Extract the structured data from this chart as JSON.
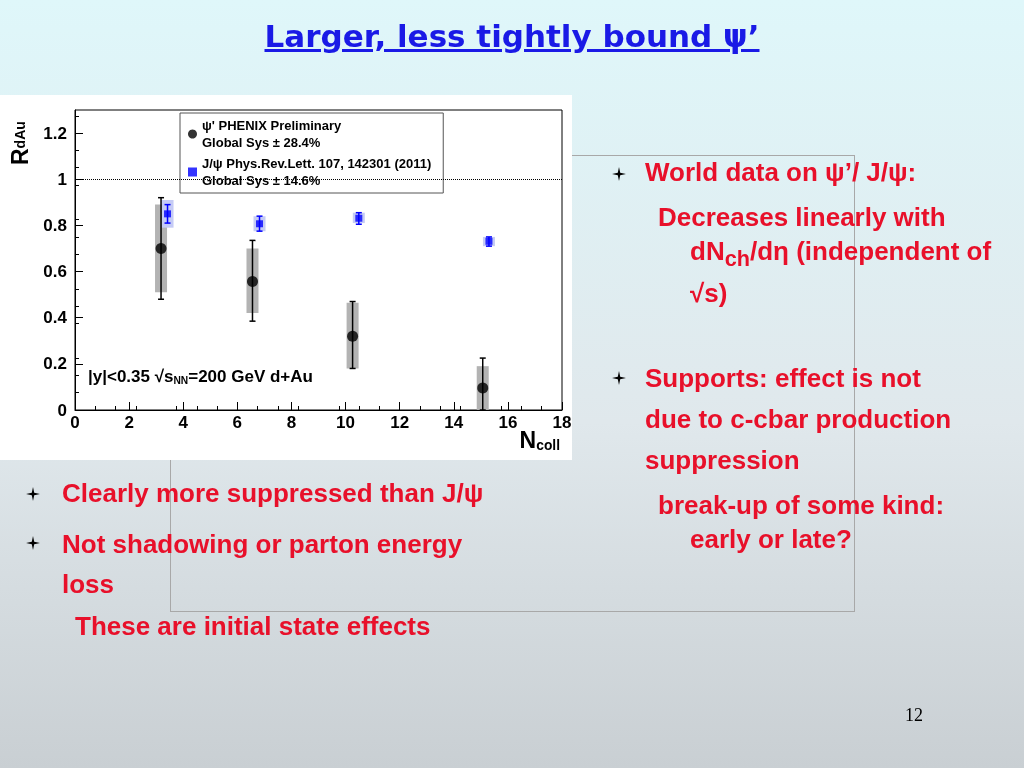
{
  "chart_data": {
    "type": "scatter",
    "title": "Larger, less tightly bound ψ’",
    "xlabel": "N$_{coll}$",
    "ylabel": "R$_{dAu}$",
    "xlim": [
      0,
      18
    ],
    "xticks": [
      0,
      2,
      4,
      6,
      8,
      10,
      12,
      14,
      16,
      18
    ],
    "ylim": [
      0,
      1.3
    ],
    "yticks": [
      0,
      0.2,
      0.4,
      0.6,
      0.8,
      1,
      1.2
    ],
    "grid": false,
    "legend": "top",
    "ref_lines": [
      {
        "axis": "y",
        "value": 1,
        "line_style": "dotted",
        "color": "#000000"
      }
    ],
    "series": [
      {
        "type": "bar",
        "color": "#b3b3b3",
        "x": [
          3.18,
          6.56,
          10.26,
          15.07
        ],
        "base": [
          0.51,
          0.42,
          0.18,
          0
        ],
        "values": [
          0.38,
          0.28,
          0.285,
          0.19
        ]
      },
      {
        "type": "bar",
        "color": "#c5cbf5",
        "x": [
          3.42,
          6.82,
          10.49,
          15.3
        ],
        "base": [
          0.79,
          0.775,
          0.81,
          0.71
        ],
        "values": [
          0.12,
          0.065,
          0.045,
          0.04
        ]
      },
      {
        "name": "ψ' PHENIX Preliminary\nGlobal Sys ± 28.4%",
        "color": "#000000",
        "marker": "circle",
        "x": [
          3.18,
          6.56,
          10.26,
          15.07
        ],
        "values": [
          0.7,
          0.557,
          0.32,
          0.095
        ],
        "errors": [
          [
            0.48,
            0.92
          ],
          [
            0.385,
            0.735
          ],
          [
            0.18,
            0.47
          ],
          [
            0,
            0.225
          ]
        ]
      },
      {
        "name": "J/ψ Phys.Rev.Lett. 107, 142301 (2011)\nGlobal Sys ± 14.6%",
        "color": "#0000ff",
        "marker": "square",
        "x": [
          3.42,
          6.82,
          10.49,
          15.3
        ],
        "values": [
          0.85,
          0.807,
          0.831,
          0.731
        ],
        "errors": [
          [
            0.81,
            0.89
          ],
          [
            0.775,
            0.84
          ],
          [
            0.805,
            0.855
          ],
          [
            0.71,
            0.75
          ]
        ]
      }
    ],
    "annotations": [
      "|y|<0.35 √s$_{NN}$=200 GeV d+Au",
      "World data on ψ’/ J/ψ:",
      "Decreases linearly with dN$_{ch}$/dη (independent of √s)",
      "Supports: effect is not due to c-cbar production suppression",
      "break-up of some kind: early or late?",
      "Clearly more suppressed than J/ψ",
      "Not shadowing or parton energy loss",
      "These are initial state effects",
      "12"
    ]
  }
}
